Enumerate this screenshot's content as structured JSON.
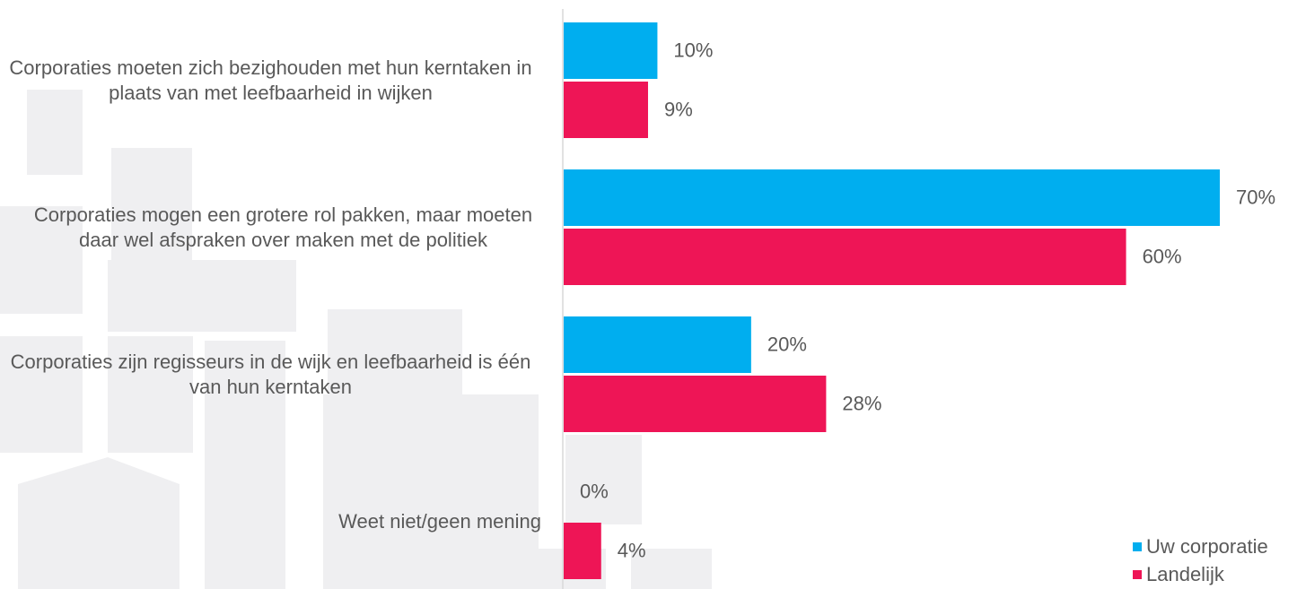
{
  "chart_data": {
    "type": "hbar",
    "categories": [
      "Corporaties moeten zich bezighouden met hun kerntaken in plaats van met leefbaarheid in wijken",
      "Corporaties mogen een grotere rol pakken, maar moeten daar wel afspraken over maken met de politiek",
      "Corporaties zijn regisseurs in de wijk en leefbaarheid is één van hun kerntaken",
      "Weet niet/geen mening"
    ],
    "series": [
      {
        "name": "Uw corporatie",
        "color": "#00aeef",
        "values": [
          10,
          70,
          20,
          0
        ],
        "value_labels": [
          "10%",
          "70%",
          "20%",
          "0%"
        ]
      },
      {
        "name": "Landelijk",
        "color": "#ee1556",
        "values": [
          9,
          60,
          28,
          4
        ],
        "value_labels": [
          "9%",
          "60%",
          "28%",
          "4%"
        ]
      }
    ],
    "legend": "bottom-right"
  }
}
